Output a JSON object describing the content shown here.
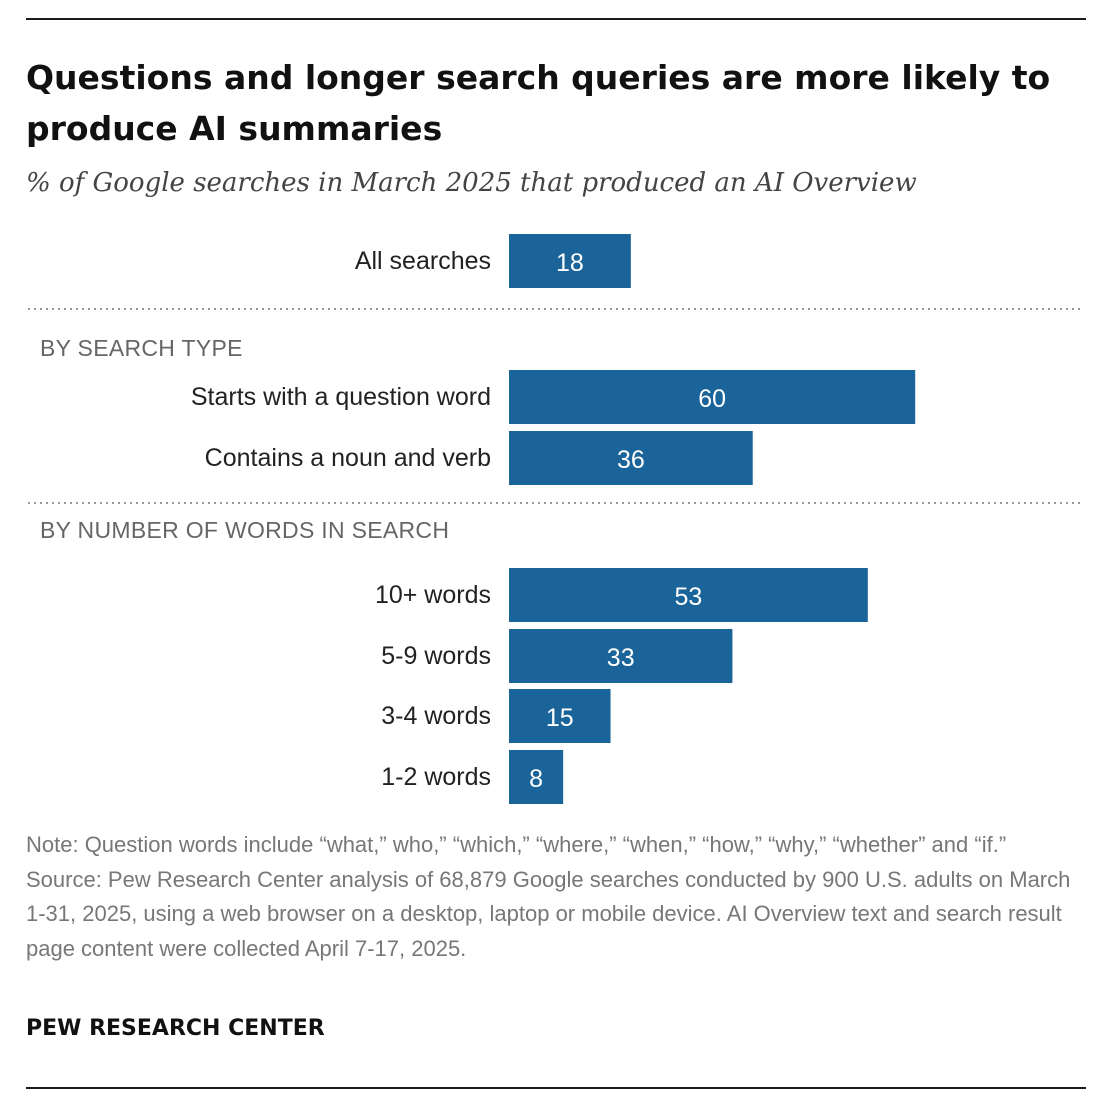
{
  "title": "Questions and longer search queries are more likely to produce AI summaries",
  "subtitle": "% of Google searches in March 2025 that produced an AI Overview",
  "note": "Note: Question words include “what,” who,” “which,” “where,” “when,” “how,” “why,” “whether” and “if.”",
  "source": "Source: Pew Research Center analysis of 68,879 Google searches conducted by 900 U.S. adults on March 1-31, 2025, using a web browser on a desktop, laptop or mobile device. AI Overview text and search result page content were collected April 7-17, 2025.",
  "organization": "PEW RESEARCH CENTER",
  "colors": {
    "bar": "#1a6499",
    "value_text": "#ffffff",
    "divider": "#999999"
  },
  "chart_data": {
    "type": "bar",
    "orientation": "horizontal",
    "xlim": [
      0,
      100
    ],
    "groups": [
      {
        "label": "",
        "categories": [
          "All searches"
        ],
        "values": [
          18
        ]
      },
      {
        "label": "BY SEARCH TYPE",
        "categories": [
          "Starts with a question word",
          "Contains a noun and verb"
        ],
        "values": [
          60,
          36
        ]
      },
      {
        "label": "BY NUMBER OF WORDS IN SEARCH",
        "categories": [
          "10+ words",
          "5-9 words",
          "3-4 words",
          "1-2 words"
        ],
        "values": [
          53,
          33,
          15,
          8
        ]
      }
    ]
  }
}
